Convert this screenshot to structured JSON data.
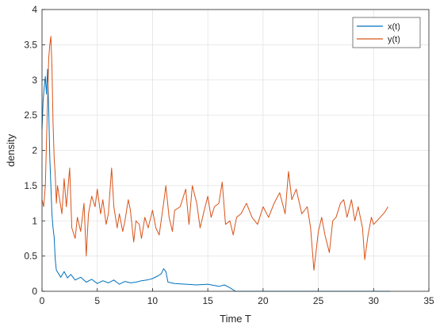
{
  "chart_data": {
    "type": "line",
    "title": "",
    "xlabel": "Time T",
    "ylabel": "density",
    "xlim": [
      0,
      35
    ],
    "ylim": [
      0,
      4
    ],
    "xticks": [
      0,
      5,
      10,
      15,
      20,
      25,
      30,
      35
    ],
    "yticks": [
      0,
      0.5,
      1,
      1.5,
      2,
      2.5,
      3,
      3.5,
      4
    ],
    "xtick_labels": [
      "0",
      "5",
      "10",
      "15",
      "20",
      "25",
      "30",
      "35"
    ],
    "ytick_labels": [
      "0",
      "0.5",
      "1",
      "1.5",
      "2",
      "2.5",
      "3",
      "3.5",
      "4"
    ],
    "grid": true,
    "legend_position": "top-right",
    "series": [
      {
        "name": "x(t)",
        "color": "#0072BD",
        "points": [
          [
            0,
            2.3
          ],
          [
            0.1,
            2.7
          ],
          [
            0.2,
            2.9
          ],
          [
            0.3,
            3.05
          ],
          [
            0.4,
            2.8
          ],
          [
            0.5,
            3.15
          ],
          [
            0.6,
            2.6
          ],
          [
            0.7,
            1.9
          ],
          [
            0.8,
            1.5
          ],
          [
            0.9,
            1.1
          ],
          [
            1.0,
            0.9
          ],
          [
            1.1,
            0.77
          ],
          [
            1.2,
            0.45
          ],
          [
            1.3,
            0.3
          ],
          [
            1.5,
            0.25
          ],
          [
            1.7,
            0.2
          ],
          [
            2.0,
            0.28
          ],
          [
            2.3,
            0.19
          ],
          [
            2.6,
            0.24
          ],
          [
            3.0,
            0.16
          ],
          [
            3.5,
            0.2
          ],
          [
            4.0,
            0.13
          ],
          [
            4.5,
            0.17
          ],
          [
            5.0,
            0.11
          ],
          [
            5.5,
            0.15
          ],
          [
            6.0,
            0.12
          ],
          [
            6.5,
            0.16
          ],
          [
            7.0,
            0.1
          ],
          [
            7.5,
            0.14
          ],
          [
            8.0,
            0.12
          ],
          [
            8.5,
            0.13
          ],
          [
            9.0,
            0.15
          ],
          [
            9.5,
            0.16
          ],
          [
            10.0,
            0.18
          ],
          [
            10.5,
            0.22
          ],
          [
            10.8,
            0.25
          ],
          [
            11.0,
            0.32
          ],
          [
            11.2,
            0.28
          ],
          [
            11.4,
            0.13
          ],
          [
            12.0,
            0.11
          ],
          [
            13.0,
            0.1
          ],
          [
            14.0,
            0.09
          ],
          [
            15.0,
            0.1
          ],
          [
            16.0,
            0.07
          ],
          [
            16.5,
            0.09
          ],
          [
            17.0,
            0.05
          ],
          [
            17.3,
            0.02
          ],
          [
            17.5,
            0.0
          ],
          [
            31.5,
            0.0
          ]
        ]
      },
      {
        "name": "y(t)",
        "color": "#D95319",
        "points": [
          [
            0,
            1.3
          ],
          [
            0.15,
            1.2
          ],
          [
            0.3,
            1.5
          ],
          [
            0.45,
            2.4
          ],
          [
            0.6,
            3.3
          ],
          [
            0.7,
            3.5
          ],
          [
            0.8,
            3.62
          ],
          [
            0.9,
            3.2
          ],
          [
            1.0,
            2.4
          ],
          [
            1.1,
            1.9
          ],
          [
            1.2,
            1.65
          ],
          [
            1.3,
            1.25
          ],
          [
            1.4,
            1.5
          ],
          [
            1.6,
            1.3
          ],
          [
            1.8,
            1.1
          ],
          [
            2.0,
            1.6
          ],
          [
            2.2,
            1.2
          ],
          [
            2.5,
            1.75
          ],
          [
            2.7,
            0.9
          ],
          [
            3.0,
            0.75
          ],
          [
            3.2,
            1.05
          ],
          [
            3.5,
            0.85
          ],
          [
            3.8,
            1.25
          ],
          [
            4.0,
            0.5
          ],
          [
            4.2,
            1.1
          ],
          [
            4.5,
            1.35
          ],
          [
            4.8,
            1.2
          ],
          [
            5.0,
            1.45
          ],
          [
            5.3,
            1.1
          ],
          [
            5.5,
            1.3
          ],
          [
            5.8,
            0.95
          ],
          [
            6.0,
            1.1
          ],
          [
            6.3,
            1.75
          ],
          [
            6.5,
            1.2
          ],
          [
            6.8,
            0.9
          ],
          [
            7.0,
            1.1
          ],
          [
            7.3,
            0.85
          ],
          [
            7.5,
            1.0
          ],
          [
            7.8,
            1.3
          ],
          [
            8.0,
            1.15
          ],
          [
            8.3,
            0.7
          ],
          [
            8.5,
            1.0
          ],
          [
            8.8,
            0.95
          ],
          [
            9.0,
            0.75
          ],
          [
            9.3,
            1.05
          ],
          [
            9.6,
            0.9
          ],
          [
            10.0,
            1.15
          ],
          [
            10.3,
            0.9
          ],
          [
            10.6,
            0.8
          ],
          [
            11.0,
            1.25
          ],
          [
            11.2,
            1.5
          ],
          [
            11.5,
            1.05
          ],
          [
            11.8,
            0.85
          ],
          [
            12.0,
            1.15
          ],
          [
            12.5,
            1.2
          ],
          [
            13.0,
            1.45
          ],
          [
            13.3,
            0.95
          ],
          [
            13.6,
            1.5
          ],
          [
            14.0,
            1.25
          ],
          [
            14.3,
            0.9
          ],
          [
            14.6,
            1.1
          ],
          [
            15.0,
            1.35
          ],
          [
            15.3,
            1.05
          ],
          [
            15.6,
            1.2
          ],
          [
            16.0,
            1.25
          ],
          [
            16.3,
            1.55
          ],
          [
            16.6,
            0.95
          ],
          [
            17.0,
            1.0
          ],
          [
            17.3,
            0.8
          ],
          [
            17.6,
            1.05
          ],
          [
            18.0,
            1.1
          ],
          [
            18.5,
            1.25
          ],
          [
            19.0,
            1.05
          ],
          [
            19.5,
            0.95
          ],
          [
            20.0,
            1.2
          ],
          [
            20.5,
            1.05
          ],
          [
            21.0,
            1.25
          ],
          [
            21.5,
            1.4
          ],
          [
            22.0,
            1.1
          ],
          [
            22.3,
            1.7
          ],
          [
            22.6,
            1.3
          ],
          [
            23.0,
            1.45
          ],
          [
            23.5,
            1.1
          ],
          [
            24.0,
            1.2
          ],
          [
            24.3,
            0.9
          ],
          [
            24.6,
            0.3
          ],
          [
            25.0,
            0.85
          ],
          [
            25.3,
            1.05
          ],
          [
            25.6,
            0.8
          ],
          [
            26.0,
            0.55
          ],
          [
            26.3,
            1.0
          ],
          [
            26.6,
            1.05
          ],
          [
            27.0,
            1.25
          ],
          [
            27.3,
            1.3
          ],
          [
            27.6,
            1.05
          ],
          [
            28.0,
            1.3
          ],
          [
            28.3,
            1.0
          ],
          [
            28.6,
            1.2
          ],
          [
            29.0,
            0.9
          ],
          [
            29.2,
            0.45
          ],
          [
            29.5,
            0.8
          ],
          [
            29.8,
            1.05
          ],
          [
            30.0,
            0.95
          ],
          [
            30.3,
            1.0
          ],
          [
            31.0,
            1.12
          ],
          [
            31.3,
            1.2
          ]
        ]
      }
    ]
  }
}
